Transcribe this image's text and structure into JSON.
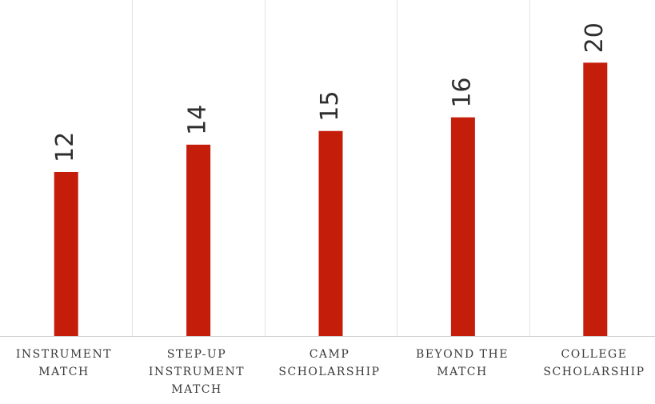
{
  "chart_data": {
    "type": "bar",
    "categories": [
      "INSTRUMENT\nMATCH",
      "STEP-UP\nINSTRUMENT\nMATCH",
      "CAMP\nSCHOLARSHIP",
      "BEYOND THE\nMATCH",
      "COLLEGE\nSCHOLARSHIP"
    ],
    "values": [
      12,
      14,
      15,
      16,
      20
    ],
    "title": "",
    "xlabel": "",
    "ylabel": "",
    "ylim": [
      0,
      24
    ],
    "grid": "vertical separators between categories",
    "legend": "none",
    "data_labels": "rotated, above bars",
    "bar_color": "#c41e0a",
    "label_color": "#2e2e2e",
    "grid_color": "#e3e3e3",
    "axis_color": "#cfcfcf"
  }
}
